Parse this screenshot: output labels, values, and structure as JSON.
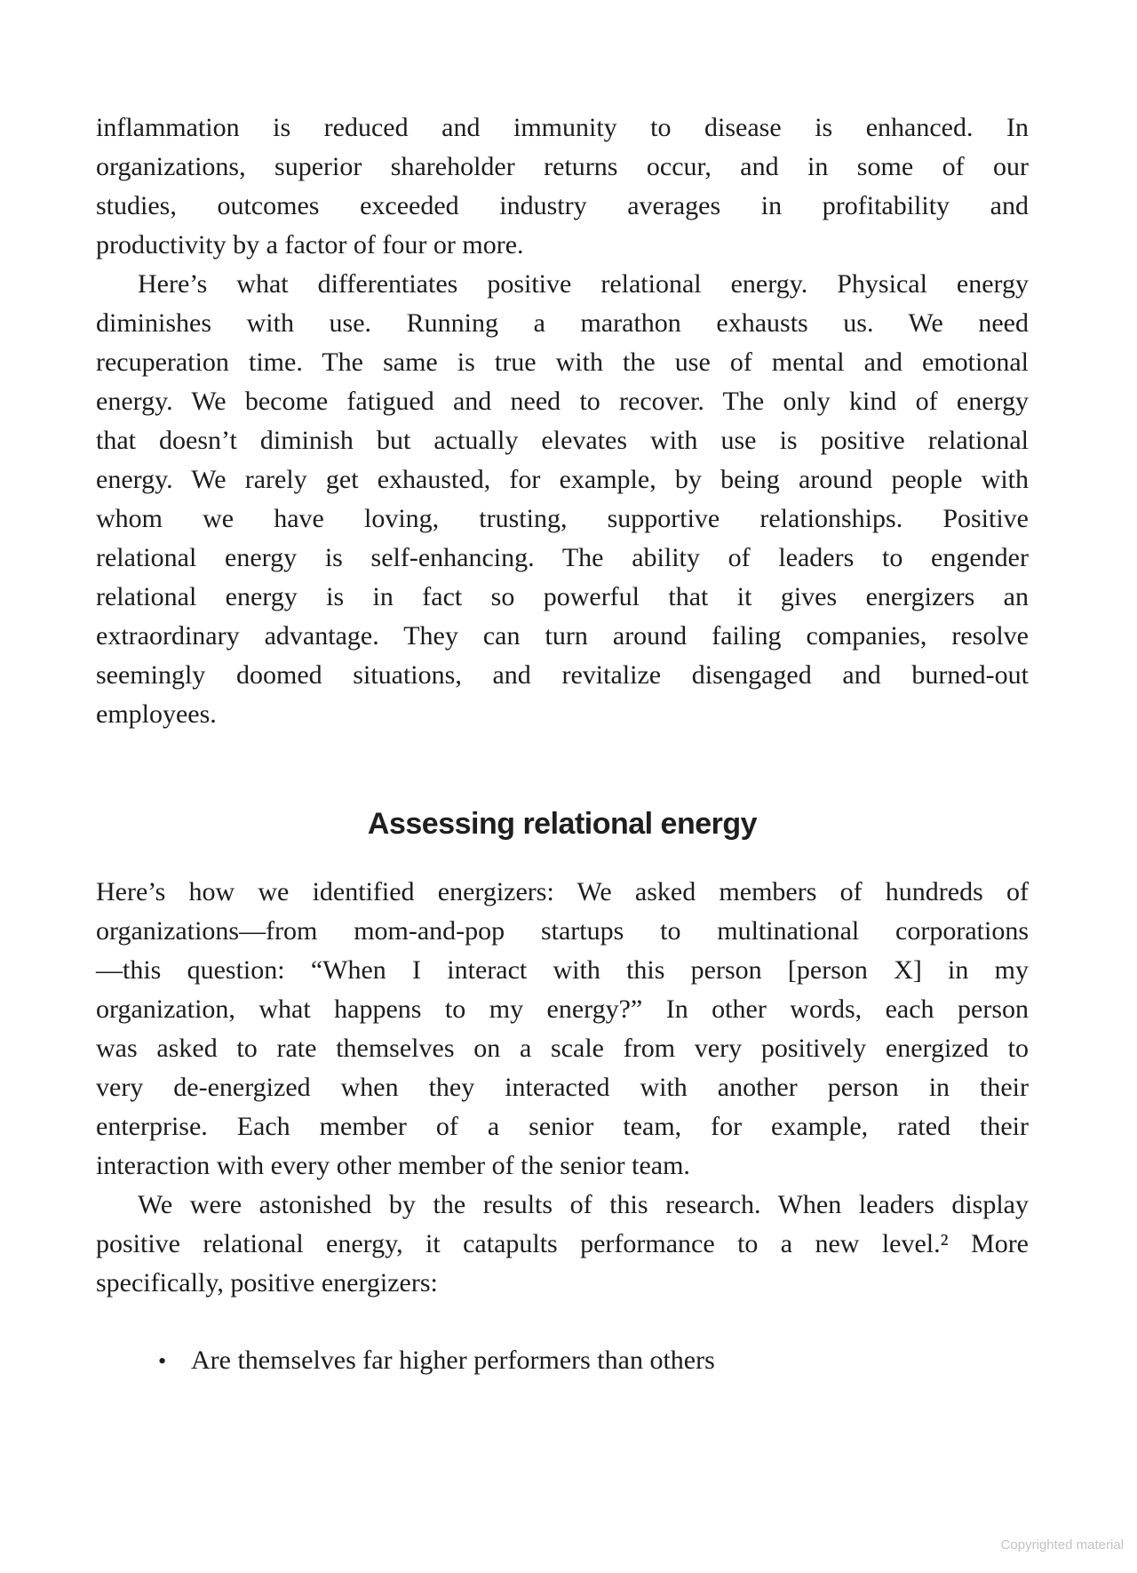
{
  "page": {
    "background_color": "#ffffff",
    "text_color": "#1c1c1c",
    "footer_text_color": "#c3c3c3"
  },
  "content": {
    "para1": {
      "indent": false,
      "lines": [
        "inflammation is reduced and immunity to disease is enhanced. In",
        "organizations, superior shareholder returns occur, and in some of our",
        "studies, outcomes exceeded industry averages in profitability and",
        "productivity by a factor of four or more."
      ]
    },
    "para2": {
      "indent": true,
      "lines": [
        "Here’s what differentiates positive relational energy. Physical energy",
        "diminishes with use. Running a marathon exhausts us. We need",
        "recuperation time. The same is true with the use of mental and emotional",
        "energy. We become fatigued and need to recover. The only kind of energy",
        "that doesn’t diminish but actually elevates with use is positive relational",
        "energy. We rarely get exhausted, for example, by being around people with",
        "whom we have loving, trusting, supportive relationships. Positive",
        "relational energy is self-enhancing. The ability of leaders to engender",
        "relational energy is in fact so powerful that it gives energizers an",
        "extraordinary advantage. They can turn around failing companies, resolve",
        "seemingly doomed situations, and revitalize disengaged and burned-out",
        "employees."
      ]
    },
    "heading": {
      "text": "Assessing relational energy"
    },
    "para3": {
      "indent": false,
      "lines": [
        "Here’s how we identified energizers: We asked members of hundreds of",
        "organizations—from mom-and-pop startups to multinational corporations",
        "—this question: “When I interact with this person [person X] in my",
        "organization, what happens to my energy?” In other words, each person",
        "was asked to rate themselves on a scale from very positively energized to",
        "very de-energized when they interacted with another person in their",
        "enterprise. Each member of a senior team, for example, rated their",
        "interaction with every other member of the senior team."
      ]
    },
    "para4": {
      "indent": true,
      "lines": [
        "We were astonished by the results of this research. When leaders display",
        "positive relational energy, it catapults performance to a new level.² More",
        "specifically, positive energizers:"
      ],
      "footnote_reference": "2"
    },
    "bullets": [
      "Are themselves far higher performers than others"
    ],
    "bullet_glyph": "•"
  },
  "footer": {
    "copyright": "Copyrighted material"
  }
}
